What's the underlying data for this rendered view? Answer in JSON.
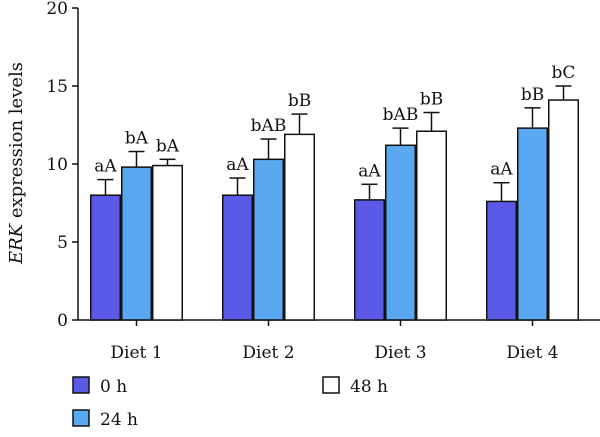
{
  "chart_data": {
    "type": "bar",
    "title": "",
    "xlabel": "",
    "ylabel": {
      "italic_part": "ERK",
      "rest": " expression levels"
    },
    "ylim": [
      0,
      20
    ],
    "yticks": [
      "0",
      "5",
      "10",
      "15",
      "20"
    ],
    "categories": [
      "Diet 1",
      "Diet 2",
      "Diet 3",
      "Diet 4"
    ],
    "series": [
      {
        "name": "0 h",
        "color": "#5a5ae6",
        "values": [
          8.0,
          8.0,
          7.7,
          7.6
        ],
        "errors": [
          1.0,
          1.1,
          1.0,
          1.2
        ],
        "labels": [
          "aA",
          "aA",
          "aA",
          "aA"
        ]
      },
      {
        "name": "24 h",
        "color": "#5aa8f0",
        "values": [
          9.8,
          10.3,
          11.2,
          12.3
        ],
        "errors": [
          1.0,
          1.3,
          1.1,
          1.3
        ],
        "labels": [
          "bA",
          "bAB",
          "bAB",
          "bB"
        ]
      },
      {
        "name": "48 h",
        "color": "#ffffff",
        "values": [
          9.9,
          11.9,
          12.1,
          14.1
        ],
        "errors": [
          0.4,
          1.3,
          1.2,
          0.9
        ],
        "labels": [
          "bA",
          "bB",
          "bB",
          "bC"
        ]
      }
    ],
    "legend_position": "bottom",
    "grid": false
  }
}
